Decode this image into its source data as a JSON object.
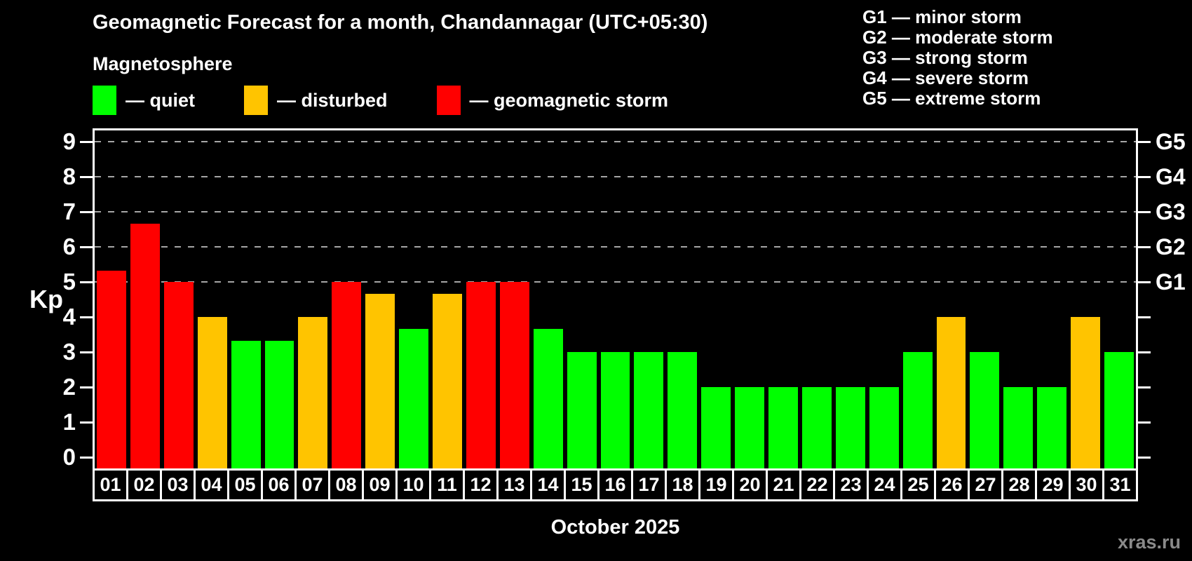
{
  "header": {
    "subtitle_note": "Magnetosphere"
  },
  "legend": {
    "items": [
      {
        "key": "quiet",
        "label": "— quiet"
      },
      {
        "key": "disturbed",
        "label": "— disturbed"
      },
      {
        "key": "storm",
        "label": "— geomagnetic storm"
      }
    ]
  },
  "g_scale_legend": {
    "items": [
      "G1 — minor storm",
      "G2 — moderate storm",
      "G3 — strong storm",
      "G4 — severe storm",
      "G5 — extreme storm"
    ]
  },
  "chart_data": {
    "type": "bar",
    "title": "Geomagnetic Forecast for a month, Chandannagar (UTC+05:30)",
    "subtitle": "Magnetosphere",
    "xlabel": "October 2025",
    "ylabel": "Kp",
    "ylim": [
      0,
      9.4
    ],
    "yticks": [
      0,
      1,
      2,
      3,
      4,
      5,
      6,
      7,
      8,
      9
    ],
    "gridlines_at_kp": [
      5,
      6,
      7,
      8,
      9
    ],
    "grid_style": "dashed horizontal lines only at Kp 5-9 (G-storm levels)",
    "legend_position": "top",
    "right_axis_labels": [
      {
        "label": "G1",
        "kp": 5
      },
      {
        "label": "G2",
        "kp": 6
      },
      {
        "label": "G3",
        "kp": 7
      },
      {
        "label": "G4",
        "kp": 8
      },
      {
        "label": "G5",
        "kp": 9
      }
    ],
    "categories": [
      "01",
      "02",
      "03",
      "04",
      "05",
      "06",
      "07",
      "08",
      "09",
      "10",
      "11",
      "12",
      "13",
      "14",
      "15",
      "16",
      "17",
      "18",
      "19",
      "20",
      "21",
      "22",
      "23",
      "24",
      "25",
      "26",
      "27",
      "28",
      "29",
      "30",
      "31"
    ],
    "values": [
      5.33,
      6.67,
      5,
      4,
      3.33,
      3.33,
      4,
      5,
      4.67,
      3.67,
      4.67,
      5,
      5,
      3.67,
      3,
      3,
      3,
      3,
      2,
      2,
      2,
      2,
      2,
      2,
      3,
      4,
      3,
      2,
      2,
      4,
      3
    ],
    "statuses": [
      "storm",
      "storm",
      "storm",
      "disturbed",
      "quiet",
      "quiet",
      "disturbed",
      "storm",
      "disturbed",
      "quiet",
      "disturbed",
      "storm",
      "storm",
      "quiet",
      "quiet",
      "quiet",
      "quiet",
      "quiet",
      "quiet",
      "quiet",
      "quiet",
      "quiet",
      "quiet",
      "quiet",
      "quiet",
      "disturbed",
      "quiet",
      "quiet",
      "quiet",
      "disturbed",
      "quiet"
    ]
  },
  "colors": {
    "quiet": "#00ff00",
    "disturbed": "#ffc400",
    "storm": "#ff0000",
    "grid": "#a6a6a6",
    "axis": "#ffffff",
    "text": "#ffffff",
    "watermark": "#8a8a8a",
    "background": "#000000"
  },
  "watermark": {
    "label": "xras.ru"
  }
}
